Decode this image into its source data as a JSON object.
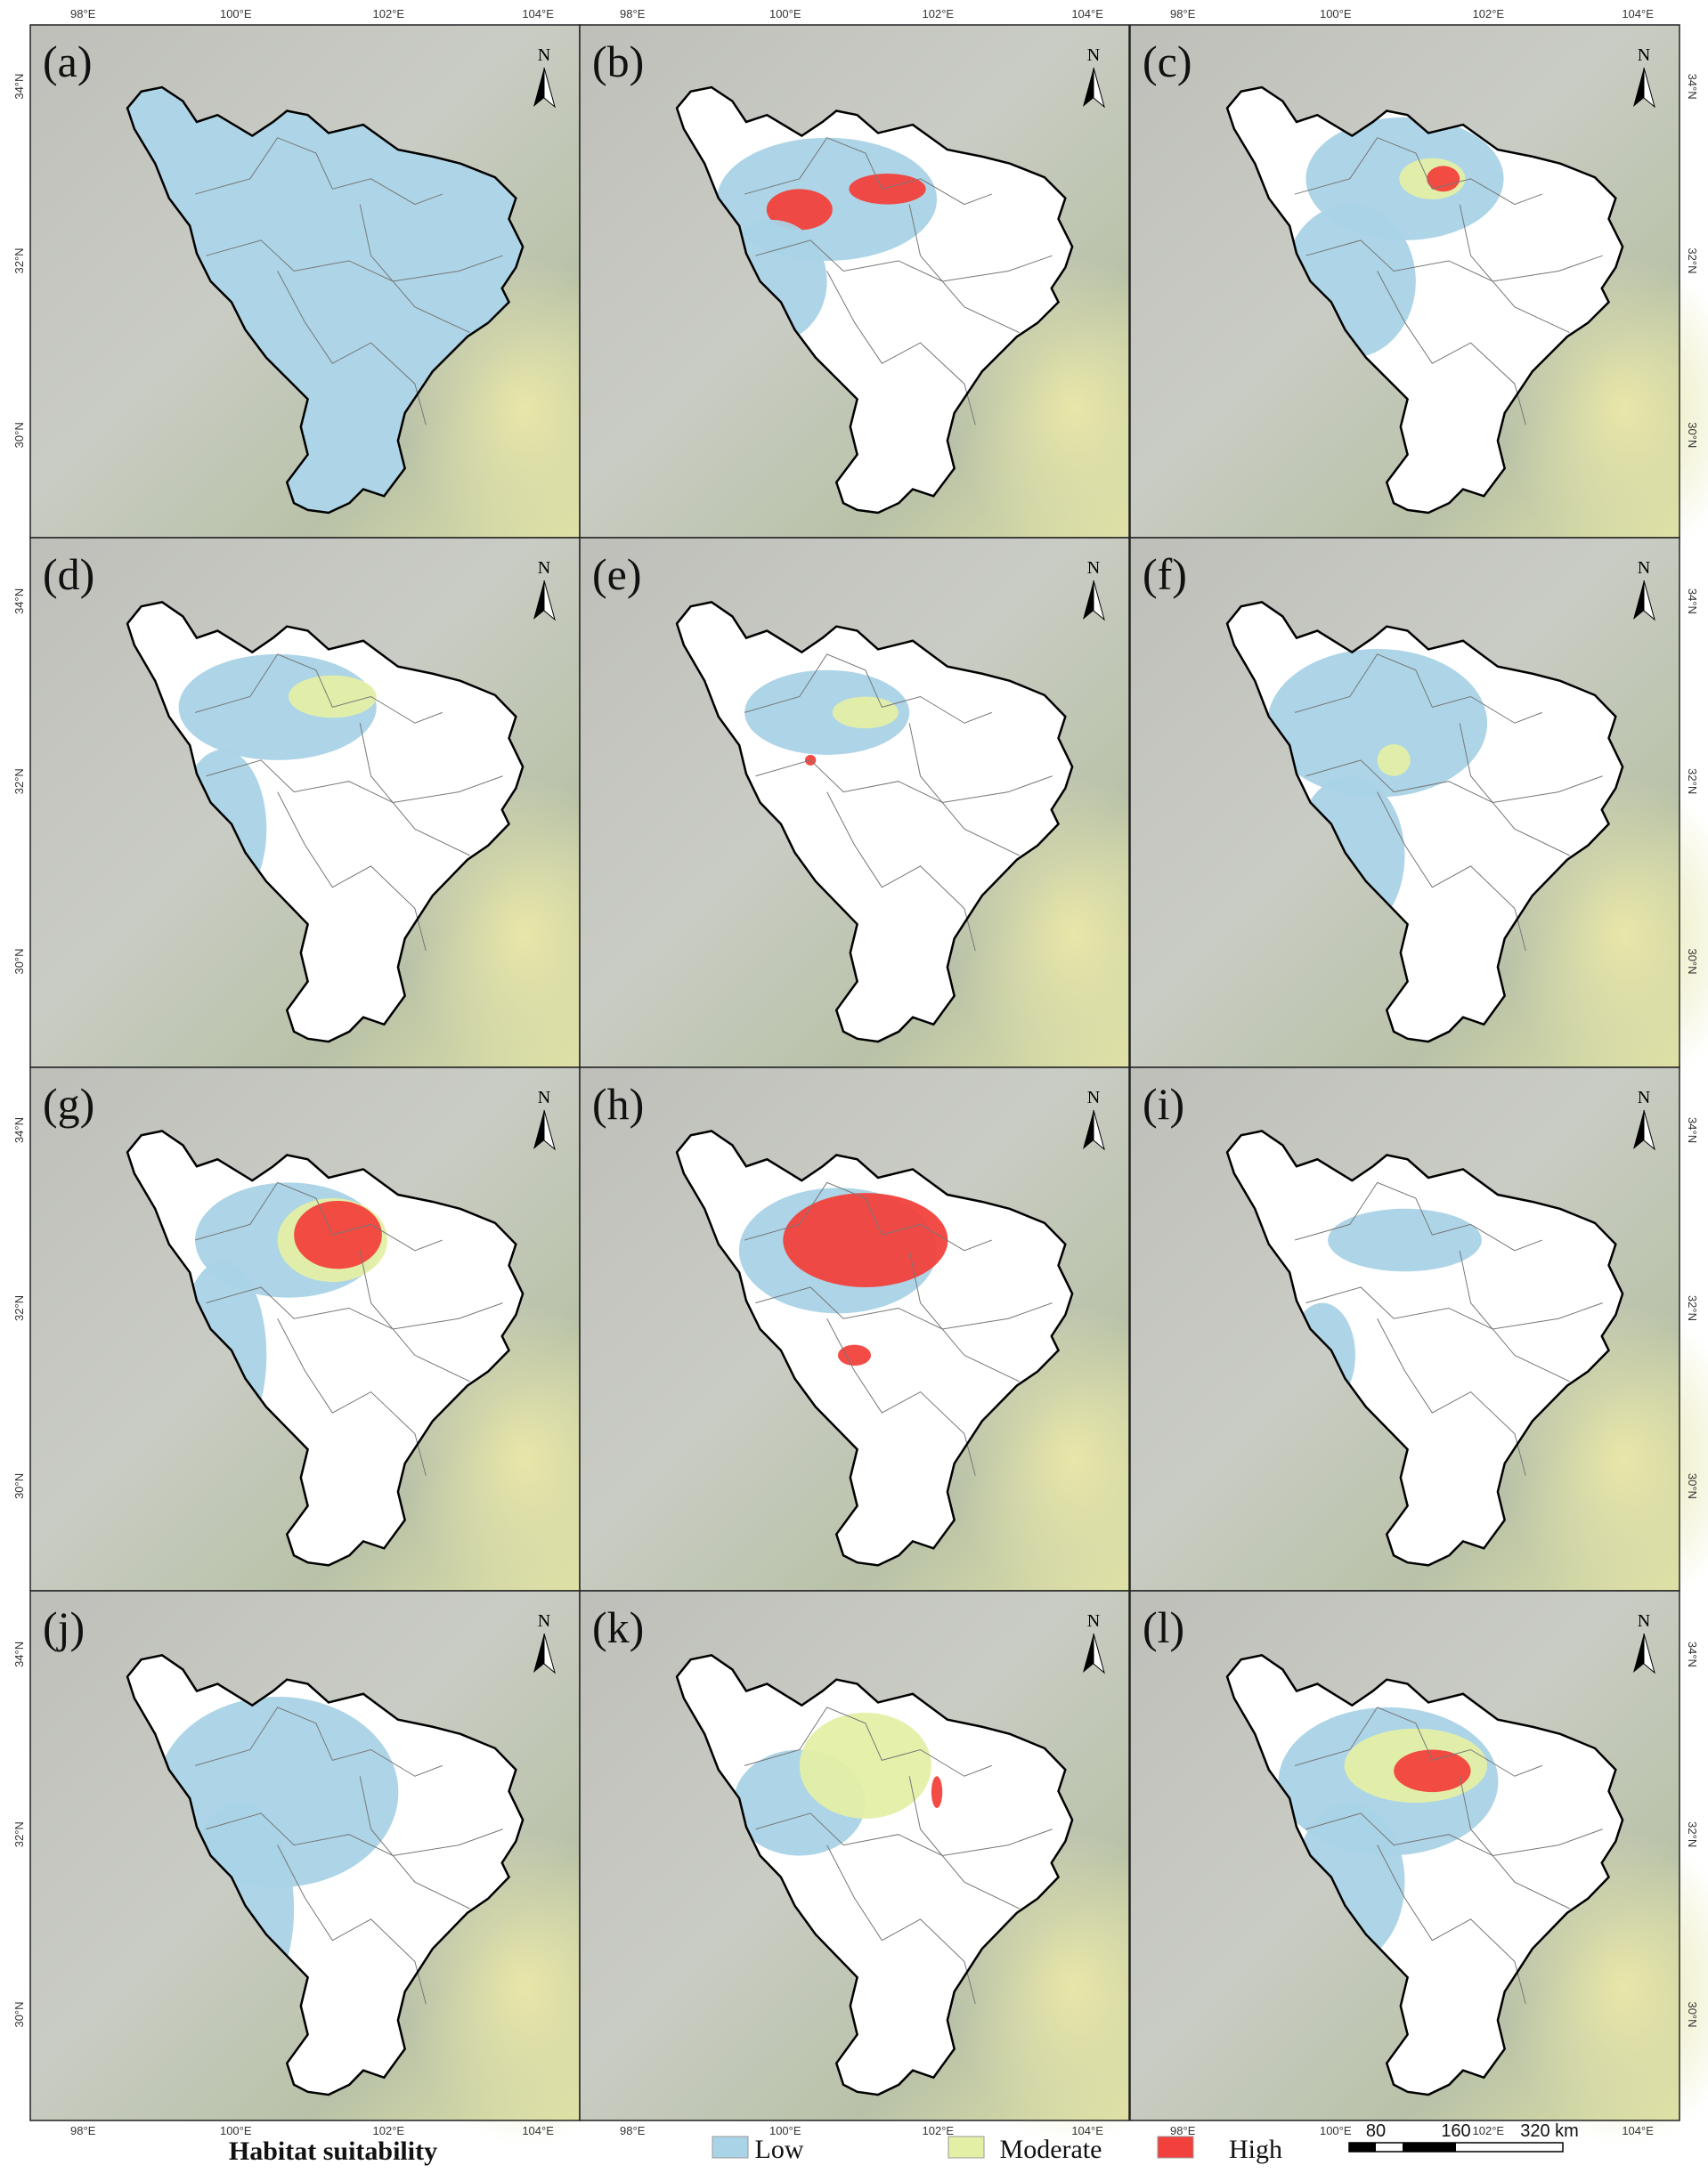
{
  "panels": [
    {
      "label": "(a)"
    },
    {
      "label": "(b)"
    },
    {
      "label": "(c)"
    },
    {
      "label": "(d)"
    },
    {
      "label": "(e)"
    },
    {
      "label": "(f)"
    },
    {
      "label": "(g)"
    },
    {
      "label": "(h)"
    },
    {
      "label": "(i)"
    },
    {
      "label": "(j)"
    },
    {
      "label": "(k)"
    },
    {
      "label": "(l)"
    }
  ],
  "north": "N",
  "axes": {
    "longitude": [
      "98°E",
      "100°E",
      "102°E",
      "104°E"
    ],
    "latitude": [
      "34°N",
      "32°N",
      "30°N"
    ]
  },
  "legend": {
    "title": "Habitat suitability",
    "items": [
      {
        "label": "Low",
        "color": "#a9d3e6"
      },
      {
        "label": "Moderate",
        "color": "#e4efa6"
      },
      {
        "label": "High",
        "color": "#f2413c"
      }
    ]
  },
  "scale_bar": {
    "labels": [
      "80",
      "160",
      "320 km"
    ]
  }
}
